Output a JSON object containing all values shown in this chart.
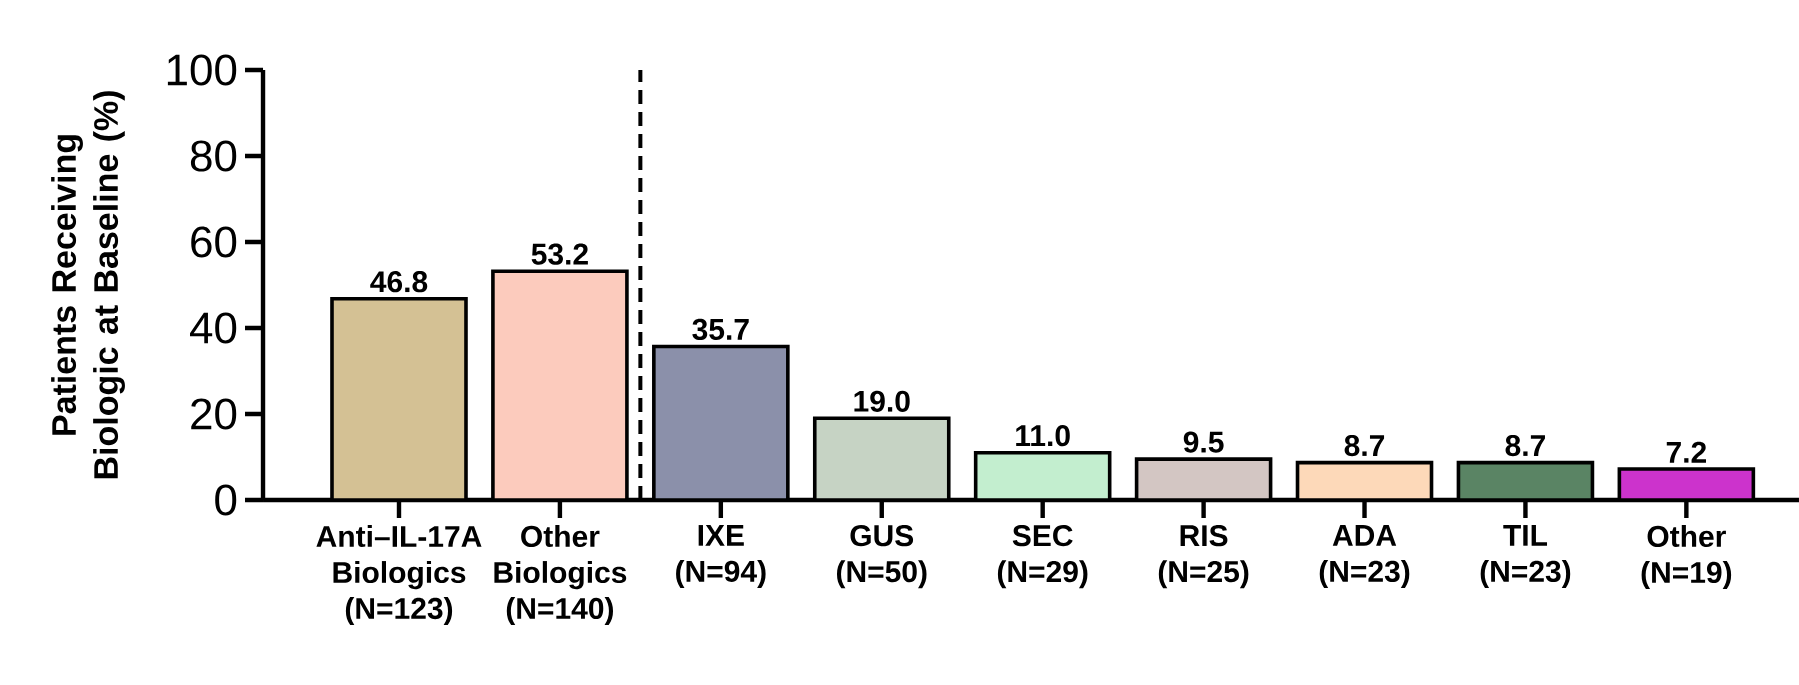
{
  "chart_data": {
    "type": "bar",
    "ylabel": "Patients Receiving Biologic at Baseline (%)",
    "categories": [
      "Anti–IL-17A Biologics (N=123)",
      "Other Biologics (N=140)",
      "IXE (N=94)",
      "GUS (N=50)",
      "SEC (N=29)",
      "RIS (N=25)",
      "ADA (N=23)",
      "TIL (N=23)",
      "Other (N=19)"
    ],
    "values": [
      46.8,
      53.2,
      35.7,
      19.0,
      11.0,
      9.5,
      8.7,
      8.7,
      7.2
    ],
    "colors": [
      "#d4c194",
      "#fccbbd",
      "#8b90aa",
      "#c6d3c4",
      "#c3eecf",
      "#d3c6c3",
      "#fdd9b9",
      "#5a8464",
      "#cc33cc"
    ],
    "value_labels": [
      "46.8",
      "53.2",
      "35.7",
      "19.0",
      "11.0",
      "9.5",
      "8.7",
      "8.7",
      "7.2"
    ],
    "ylim": [
      0,
      100
    ],
    "yticks": [
      0,
      20,
      40,
      60,
      80,
      100
    ]
  }
}
